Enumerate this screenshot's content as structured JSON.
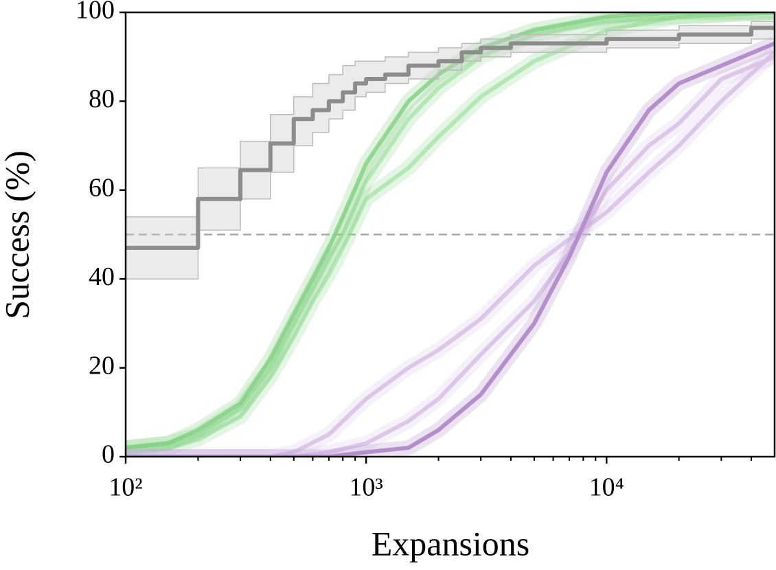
{
  "chart_data": {
    "type": "line",
    "xlabel": "Expansions",
    "ylabel": "Success (%)",
    "xscale": "log",
    "xlim": [
      100,
      50000
    ],
    "ylim": [
      0,
      100
    ],
    "xticks": [
      {
        "value": 100,
        "label": "10²"
      },
      {
        "value": 1000,
        "label": "10³"
      },
      {
        "value": 10000,
        "label": "10⁴"
      }
    ],
    "xminorticks": [
      200,
      300,
      400,
      500,
      600,
      700,
      800,
      900,
      2000,
      3000,
      4000,
      5000,
      6000,
      7000,
      8000,
      9000,
      20000,
      30000,
      40000
    ],
    "yticks": [
      0,
      20,
      40,
      60,
      80,
      100
    ],
    "reference_line": {
      "value": 50,
      "color": "#aaaaaa"
    },
    "series": [
      {
        "color": "#8fd88f",
        "opacity": 0.55,
        "x": [
          100,
          150,
          200,
          300,
          400,
          500,
          600,
          700,
          800,
          1000,
          1500,
          2000,
          3000,
          5000,
          10000,
          20000,
          50000
        ],
        "values": [
          1,
          2,
          4,
          9,
          18,
          27,
          35,
          41,
          47,
          58,
          65,
          72,
          81,
          89,
          96,
          99,
          100
        ]
      },
      {
        "color": "#8fd88f",
        "opacity": 0.55,
        "x": [
          100,
          150,
          200,
          300,
          400,
          500,
          600,
          700,
          800,
          1000,
          1500,
          2000,
          3000,
          5000,
          10000,
          20000,
          50000
        ],
        "values": [
          2,
          3,
          5,
          11,
          20,
          30,
          38,
          45,
          50,
          62,
          76,
          83,
          90,
          95,
          98,
          99,
          100
        ]
      },
      {
        "color": "#7fd07f",
        "opacity": 0.8,
        "x": [
          100,
          150,
          200,
          300,
          400,
          500,
          600,
          700,
          800,
          1000,
          1500,
          2000,
          3000,
          5000,
          10000,
          20000,
          50000
        ],
        "values": [
          2,
          3,
          6,
          12,
          22,
          32,
          40,
          47,
          54,
          66,
          80,
          86,
          92,
          96,
          99,
          100,
          100
        ]
      },
      {
        "color": "#d9c2e6",
        "opacity": 0.9,
        "x": [
          100,
          300,
          400,
          500,
          700,
          1000,
          1500,
          2000,
          3000,
          5000,
          7000,
          10000,
          15000,
          20000,
          30000,
          50000
        ],
        "values": [
          0,
          0,
          0,
          1,
          5,
          13,
          20,
          24,
          31,
          43,
          49,
          55,
          64,
          70,
          80,
          91
        ]
      },
      {
        "color": "#d9c2e6",
        "opacity": 0.9,
        "x": [
          100,
          300,
          400,
          500,
          700,
          1000,
          1500,
          2000,
          3000,
          5000,
          7000,
          10000,
          15000,
          20000,
          30000,
          50000
        ],
        "values": [
          0,
          0,
          0,
          0,
          1,
          3,
          8,
          13,
          23,
          35,
          46,
          60,
          70,
          75,
          85,
          90
        ]
      },
      {
        "color": "#b48fcc",
        "opacity": 1,
        "x": [
          100,
          300,
          400,
          500,
          700,
          1000,
          1500,
          2000,
          3000,
          5000,
          7000,
          10000,
          15000,
          20000,
          30000,
          50000
        ],
        "values": [
          0,
          0,
          0,
          0,
          0,
          1,
          2,
          6,
          14,
          30,
          45,
          64,
          78,
          84,
          88,
          93
        ]
      },
      {
        "color": "#8c8c8c",
        "opacity": 1,
        "step": true,
        "x": [
          100,
          200,
          300,
          400,
          500,
          600,
          700,
          800,
          900,
          1000,
          1200,
          1500,
          2000,
          2500,
          3000,
          4000,
          10000,
          20000,
          40000,
          50000
        ],
        "values": [
          47,
          58,
          64.5,
          70.5,
          76,
          78,
          80,
          82,
          84,
          85,
          86,
          88,
          89,
          91,
          92,
          93,
          94,
          95,
          96.5,
          96.5
        ],
        "lower": [
          40,
          51,
          58,
          64,
          70,
          73,
          76,
          78,
          81,
          82,
          84,
          85,
          87,
          89,
          90,
          91,
          92,
          93,
          94,
          94
        ],
        "upper": [
          54,
          65,
          71,
          77,
          81,
          84,
          86,
          88,
          89,
          89,
          90,
          91,
          92,
          93,
          94,
          95,
          96,
          97,
          98,
          98
        ]
      }
    ]
  }
}
